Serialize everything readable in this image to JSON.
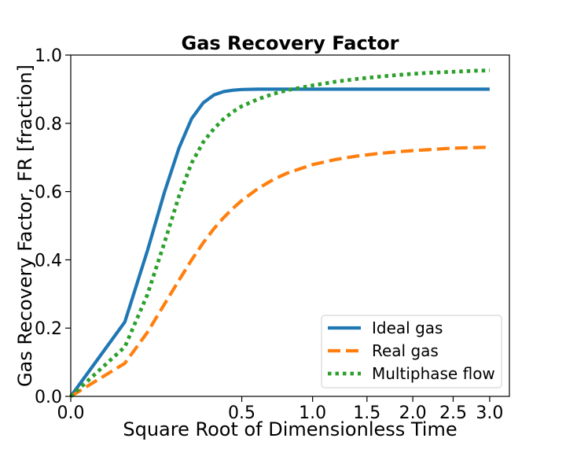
{
  "chart_data": {
    "type": "line",
    "title": "Gas Recovery Factor",
    "xlabel": "Square Root of Dimensionless Time",
    "ylabel": "Gas Recovery Factor, FR [fraction]",
    "x_tick_labels": [
      "0.0",
      "0.5",
      "1.0",
      "1.5",
      "2.0",
      "2.5",
      "3.0"
    ],
    "y_tick_labels": [
      "0.0",
      "0.2",
      "0.4",
      "0.6",
      "0.8",
      "1.0"
    ],
    "ylim": [
      0,
      1.0
    ],
    "grid": false,
    "legend_position": "lower-right",
    "x": [
      0.0,
      0.05,
      0.1,
      0.15,
      0.2,
      0.25,
      0.3,
      0.35,
      0.4,
      0.45,
      0.5,
      0.6,
      0.7,
      0.8,
      1.0,
      1.2,
      1.4,
      1.6,
      1.8,
      2.0,
      2.2,
      2.4,
      2.6,
      2.8,
      3.0
    ],
    "series": [
      {
        "name": "Ideal gas",
        "color": "#1f77b4",
        "style": "solid",
        "values": [
          0.0,
          0.218,
          0.425,
          0.598,
          0.727,
          0.814,
          0.86,
          0.883,
          0.893,
          0.897,
          0.899,
          0.9,
          0.9,
          0.9,
          0.9,
          0.9,
          0.9,
          0.9,
          0.9,
          0.9,
          0.9,
          0.9,
          0.9,
          0.9,
          0.9
        ]
      },
      {
        "name": "Real gas",
        "color": "#ff7f0e",
        "style": "dashed",
        "values": [
          0.0,
          0.097,
          0.187,
          0.27,
          0.34,
          0.4,
          0.45,
          0.491,
          0.524,
          0.551,
          0.574,
          0.609,
          0.635,
          0.654,
          0.679,
          0.694,
          0.704,
          0.711,
          0.716,
          0.72,
          0.723,
          0.726,
          0.728,
          0.729,
          0.73
        ]
      },
      {
        "name": "Multiphase flow",
        "color": "#2ca02c",
        "style": "dotted",
        "values": [
          0.0,
          0.145,
          0.297,
          0.45,
          0.586,
          0.684,
          0.745,
          0.784,
          0.813,
          0.834,
          0.85,
          0.871,
          0.886,
          0.897,
          0.911,
          0.922,
          0.93,
          0.936,
          0.941,
          0.945,
          0.948,
          0.95,
          0.952,
          0.954,
          0.955
        ]
      }
    ]
  }
}
